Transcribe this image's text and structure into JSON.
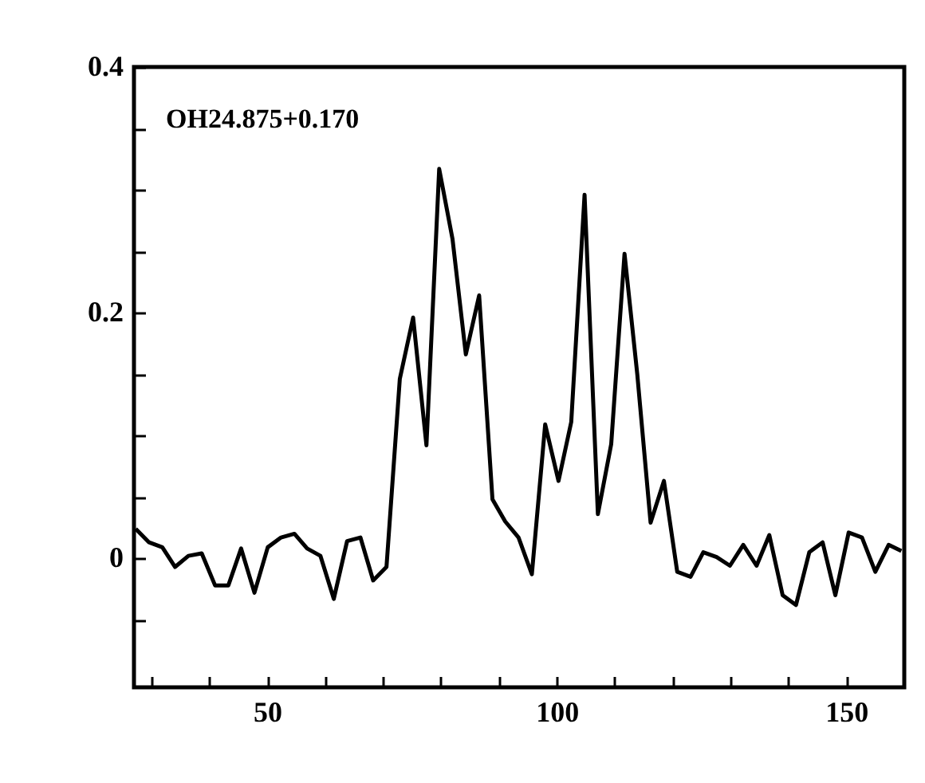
{
  "chart_data": {
    "type": "line",
    "annotations": [
      "OH24.875+0.170"
    ],
    "x": [
      27.3,
      29.6,
      31.9,
      34.1,
      36.4,
      38.7,
      41,
      43.3,
      45.5,
      47.8,
      50.1,
      52.4,
      54.7,
      56.9,
      59.2,
      61.5,
      63.8,
      66.1,
      68.3,
      70.6,
      72.9,
      75.2,
      77.5,
      79.7,
      82,
      84.3,
      86.6,
      88.9,
      91.1,
      93.4,
      95.7,
      98,
      100.3,
      102.5,
      104.8,
      107.1,
      109.4,
      111.7,
      113.9,
      116.2,
      118.5,
      120.8,
      123.1,
      125.3,
      127.6,
      129.9,
      132.2,
      134.5,
      136.7,
      139,
      141.3,
      143.6,
      145.9,
      148.1,
      150.4,
      152.7,
      155,
      157.3,
      159.5
    ],
    "series": [
      {
        "color": "#000000",
        "values": [
          0.024,
          0.013,
          0.009,
          -0.007,
          0.002,
          0.004,
          -0.022,
          -0.022,
          0.008,
          -0.028,
          0.009,
          0.017,
          0.02,
          0.008,
          0.002,
          -0.033,
          0.014,
          0.017,
          -0.018,
          -0.007,
          0.146,
          0.196,
          0.092,
          0.317,
          0.26,
          0.166,
          0.214,
          0.048,
          0.03,
          0.017,
          -0.013,
          0.109,
          0.063,
          0.111,
          0.296,
          0.036,
          0.093,
          0.248,
          0.15,
          0.029,
          0.063,
          -0.011,
          -0.015,
          0.005,
          0.001,
          -0.006,
          0.011,
          -0.006,
          0.019,
          -0.03,
          -0.038,
          0.005,
          0.013,
          -0.03,
          0.021,
          0.017,
          -0.011,
          0.011,
          0.006
        ]
      }
    ],
    "xlim": [
      27,
      160
    ],
    "xticks": [
      {
        "value": 30,
        "label": null
      },
      {
        "value": 40,
        "label": null
      },
      50,
      {
        "value": 60,
        "label": null
      },
      {
        "value": 70,
        "label": null
      },
      {
        "value": 80,
        "label": null
      },
      {
        "value": 90,
        "label": null
      },
      100,
      {
        "value": 110,
        "label": null
      },
      {
        "value": 120,
        "label": null
      },
      {
        "value": 130,
        "label": null
      },
      {
        "value": 140,
        "label": null
      },
      150
    ],
    "ylim": [
      -0.105,
      0.4
    ],
    "yticks": [
      {
        "value": -0.05,
        "label": null
      },
      0,
      {
        "value": 0.05,
        "label": null
      },
      {
        "value": 0.1,
        "label": null
      },
      {
        "value": 0.15,
        "label": null
      },
      0.2,
      {
        "value": 0.25,
        "label": null
      },
      {
        "value": 0.3,
        "label": null
      },
      {
        "value": 0.35,
        "label": null
      },
      0.4
    ],
    "grid": false,
    "marker": "none",
    "line_style": "solid"
  }
}
